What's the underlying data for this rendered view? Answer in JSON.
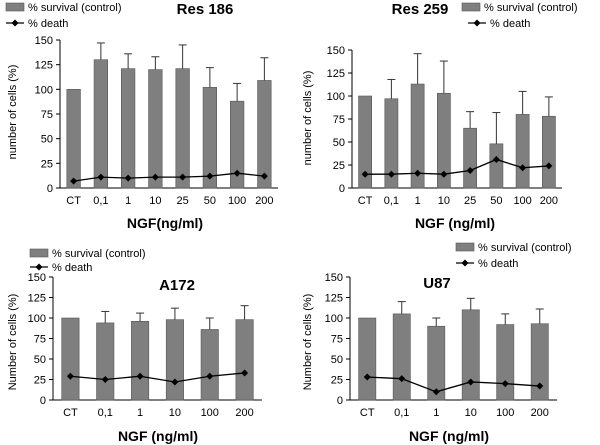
{
  "figure": {
    "colors": {
      "bar": "#7f7f7f",
      "bar_edge": "#555555",
      "line": "#000000",
      "axis": "#000000"
    }
  },
  "chart_data": [
    {
      "type": "bar",
      "title": "Res 186",
      "xlabel": "NGF(ng/ml)",
      "ylabel": "number of cells (%)",
      "categories": [
        "CT",
        "0,1",
        "1",
        "10",
        "25",
        "50",
        "100",
        "200"
      ],
      "ylim": [
        0,
        150
      ],
      "yticks": [
        0,
        25,
        50,
        75,
        100,
        125,
        150
      ],
      "series": [
        {
          "name": "% survival (control)",
          "kind": "bar",
          "values": [
            100,
            130,
            121,
            120,
            121,
            102,
            88,
            109
          ],
          "error": [
            0,
            17,
            15,
            13,
            24,
            20,
            18,
            23
          ]
        },
        {
          "name": "% death",
          "kind": "line",
          "values": [
            7,
            11,
            10,
            11,
            11,
            12,
            15,
            12
          ]
        }
      ],
      "legend": "top-left"
    },
    {
      "type": "bar",
      "title": "Res 259",
      "xlabel": "NGF (ng/ml)",
      "ylabel": "number of cells (%)",
      "categories": [
        "CT",
        "0,1",
        "1",
        "10",
        "25",
        "50",
        "100",
        "200"
      ],
      "ylim": [
        0,
        150
      ],
      "yticks": [
        0,
        25,
        50,
        75,
        100,
        125,
        150
      ],
      "series": [
        {
          "name": "% survival (control)",
          "kind": "bar",
          "values": [
            100,
            97,
            113,
            103,
            65,
            48,
            80,
            78
          ],
          "error": [
            0,
            21,
            33,
            35,
            18,
            34,
            25,
            21
          ]
        },
        {
          "name": "% death",
          "kind": "line",
          "values": [
            15,
            15,
            16,
            15,
            19,
            31,
            22,
            24
          ]
        }
      ],
      "legend": "top-right"
    },
    {
      "type": "bar",
      "title": "A172",
      "xlabel": "NGF (ng/ml)",
      "ylabel": "Number of cells (%)",
      "categories": [
        "CT",
        "0,1",
        "1",
        "10",
        "100",
        "200"
      ],
      "ylim": [
        0,
        150
      ],
      "yticks": [
        0,
        25,
        50,
        75,
        100,
        125,
        150
      ],
      "series": [
        {
          "name": "% survival (control)",
          "kind": "bar",
          "values": [
            100,
            94,
            96,
            98,
            86,
            98
          ],
          "error": [
            0,
            14,
            10,
            14,
            14,
            17
          ]
        },
        {
          "name": "% death",
          "kind": "line",
          "values": [
            29,
            25,
            29,
            22,
            29,
            33
          ]
        }
      ],
      "legend": "top-left"
    },
    {
      "type": "bar",
      "title": "U87",
      "xlabel": "NGF (ng/ml)",
      "ylabel": "Number of cells (%)",
      "categories": [
        "CT",
        "0,1",
        "1",
        "10",
        "100",
        "200"
      ],
      "ylim": [
        0,
        150
      ],
      "yticks": [
        0,
        25,
        50,
        75,
        100,
        125,
        150
      ],
      "series": [
        {
          "name": "% survival (control)",
          "kind": "bar",
          "values": [
            100,
            105,
            90,
            110,
            92,
            93
          ],
          "error": [
            0,
            15,
            10,
            14,
            13,
            18
          ]
        },
        {
          "name": "% death",
          "kind": "line",
          "values": [
            28,
            26,
            10,
            22,
            20,
            17
          ]
        }
      ],
      "legend": "top-right"
    }
  ]
}
